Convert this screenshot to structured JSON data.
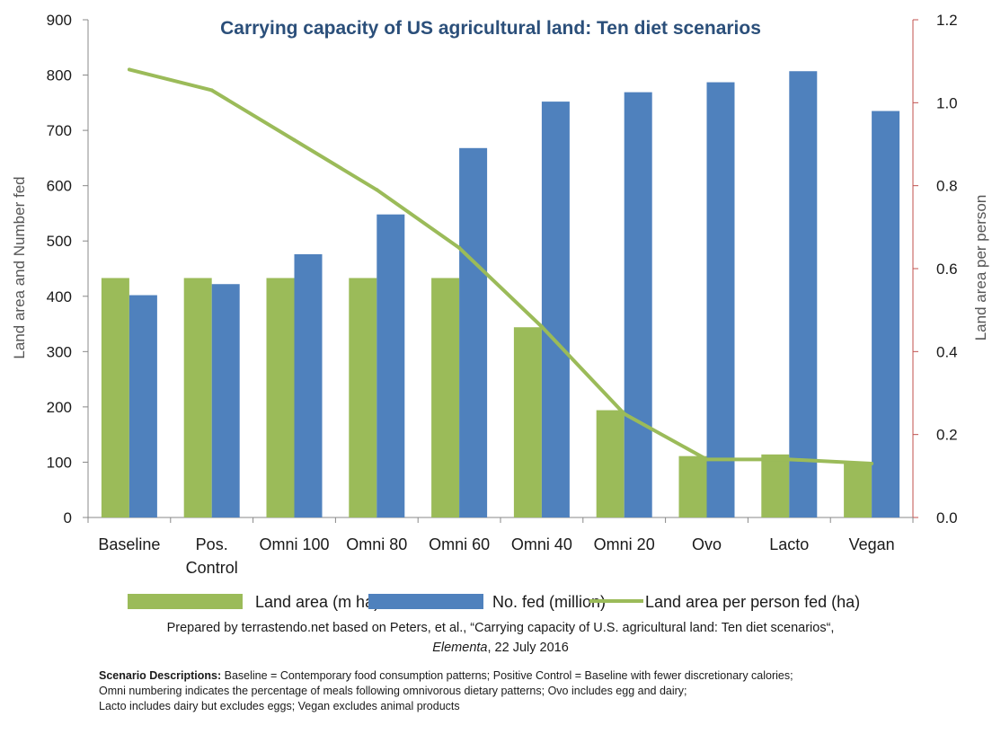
{
  "colors": {
    "land_bar": "#9bbb59",
    "fed_bar": "#4f81bd",
    "line": "#9bbb59",
    "right_axis": "#c0504d",
    "title": "#2b4f7a"
  },
  "chart_data": {
    "type": "bar",
    "title": "Carrying capacity of US agricultural land: Ten diet scenarios",
    "categories": [
      "Baseline",
      "Pos. Control",
      "Omni 100",
      "Omni 80",
      "Omni 60",
      "Omni 40",
      "Omni 20",
      "Ovo",
      "Lacto",
      "Vegan"
    ],
    "category_lines": [
      [
        "Baseline"
      ],
      [
        "Pos.",
        "Control"
      ],
      [
        "Omni 100"
      ],
      [
        "Omni 80"
      ],
      [
        "Omni 60"
      ],
      [
        "Omni 40"
      ],
      [
        "Omni 20"
      ],
      [
        "Ovo"
      ],
      [
        "Lacto"
      ],
      [
        "Vegan"
      ]
    ],
    "ylabel": "Land area and Number fed",
    "ylim": [
      0,
      900
    ],
    "yticks": [
      "0",
      "100",
      "200",
      "300",
      "400",
      "500",
      "600",
      "700",
      "800",
      "900"
    ],
    "y2label": "Land area per person",
    "y2lim": [
      0,
      1.2
    ],
    "y2ticks": [
      "0.0",
      "0.2",
      "0.4",
      "0.6",
      "0.8",
      "1.0",
      "1.2"
    ],
    "series": [
      {
        "name": "Land area (m ha)",
        "type": "bar",
        "axis": "left",
        "values": [
          433,
          433,
          433,
          433,
          433,
          344,
          194,
          111,
          114,
          100
        ]
      },
      {
        "name": "No. fed (million)",
        "type": "bar",
        "axis": "left",
        "values": [
          402,
          422,
          476,
          548,
          668,
          752,
          769,
          787,
          807,
          735
        ]
      },
      {
        "name": "Land area per person fed (ha)",
        "type": "line",
        "axis": "right",
        "values": [
          1.08,
          1.03,
          0.91,
          0.79,
          0.65,
          0.46,
          0.25,
          0.14,
          0.14,
          0.13
        ]
      }
    ],
    "legend": [
      "Land area (m ha)",
      "No. fed (million)",
      "Land area per person fed (ha)"
    ],
    "legend_position": "bottom"
  },
  "credit": {
    "line1": "Prepared by terrastendo.net based on Peters, et al., “Carrying capacity of U.S. agricultural land: Ten diet scenarios“,",
    "journal": "Elementa",
    "date": ", 22 July 2016"
  },
  "notes": {
    "label": "Scenario Descriptions:",
    "line1": " Baseline = Contemporary food consumption patterns; Positive Control = Baseline with fewer discretionary calories;",
    "line2": "Omni numbering indicates the percentage of meals following omnivorous dietary patterns; Ovo includes egg and dairy;",
    "line3": "Lacto includes dairy but excludes eggs; Vegan excludes animal products"
  }
}
